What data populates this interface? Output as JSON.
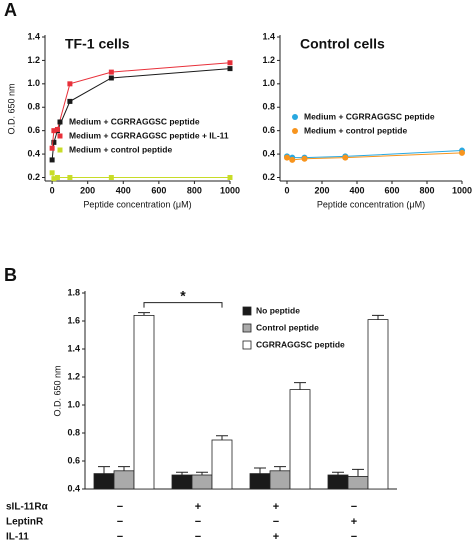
{
  "panel_labels": [
    "A",
    "B"
  ],
  "chart_data": [
    {
      "type": "line",
      "title": "TF-1 cells",
      "xlabel": "Peptide concentration (μM)",
      "ylabel": "O.D. 650 nm",
      "xlim": [
        -40,
        1000
      ],
      "xticks": [
        0,
        200,
        400,
        600,
        800,
        1000
      ],
      "ylim": [
        0.17,
        1.4
      ],
      "yticks": [
        0.2,
        0.4,
        0.6,
        0.8,
        {
          "value": 1,
          "label": "1.0"
        },
        1.2,
        1.4
      ],
      "marker": "square",
      "legend": "lower left",
      "series": [
        {
          "name": "Medium + CGRRAGGSC peptide",
          "color": "#1a1a1a",
          "x": [
            0,
            10,
            30,
            100,
            333,
            1000
          ],
          "values": [
            0.35,
            0.5,
            0.6,
            0.85,
            1.05,
            1.13
          ]
        },
        {
          "name": "Medium + CGRRAGGSC peptide + IL-11",
          "color": "#e8303a",
          "x": [
            0,
            10,
            30,
            100,
            333,
            1000
          ],
          "values": [
            0.45,
            0.6,
            0.61,
            1.0,
            1.1,
            1.18
          ]
        },
        {
          "name": "Medium + control peptide",
          "color": "#c8dc28",
          "x": [
            0,
            10,
            30,
            100,
            333,
            1000
          ],
          "values": [
            0.24,
            0.19,
            0.2,
            0.2,
            0.2,
            0.2
          ]
        }
      ]
    },
    {
      "type": "line",
      "title": "Control cells",
      "xlabel": "Peptide concentration (μM)",
      "xlim": [
        -40,
        1000
      ],
      "xticks": [
        0,
        200,
        400,
        600,
        800,
        1000
      ],
      "ylim": [
        0.17,
        1.4
      ],
      "yticks": [
        0.2,
        0.4,
        0.6,
        0.8,
        {
          "value": 1,
          "label": "1.0"
        },
        1.2,
        1.4
      ],
      "marker": "circle",
      "legend": "center left",
      "series": [
        {
          "name": "Medium + CGRRAGGSC peptide",
          "color": "#29a8e0",
          "x": [
            0,
            30,
            100,
            333,
            1000
          ],
          "values": [
            0.38,
            0.37,
            0.37,
            0.38,
            0.43
          ]
        },
        {
          "name": "Medium + control peptide",
          "color": "#f7941d",
          "x": [
            0,
            30,
            100,
            333,
            1000
          ],
          "values": [
            0.37,
            0.35,
            0.36,
            0.37,
            0.41
          ]
        }
      ]
    },
    {
      "type": "bar",
      "ylabel": "O.D. 650 nm",
      "annotation": "*",
      "ylim": [
        0.4,
        1.8
      ],
      "yticks": [
        0.4,
        0.6,
        0.8,
        {
          "value": 1,
          "label": "1.0"
        },
        1.2,
        1.4,
        1.6,
        1.8
      ],
      "categories": [
        null,
        null,
        null,
        null
      ],
      "legend": "upper right",
      "series": [
        {
          "name": "No peptide",
          "color": "#1a1a1a",
          "values": [
            0.51,
            0.5,
            0.51,
            0.5
          ],
          "errors": [
            0.05,
            0.02,
            0.04,
            0.02
          ]
        },
        {
          "name": "Control peptide",
          "color": "#aaaaaa",
          "values": [
            0.53,
            0.5,
            0.53,
            0.49
          ],
          "errors": [
            0.03,
            0.02,
            0.03,
            0.05
          ]
        },
        {
          "name": "CGRRAGGSC peptide",
          "color": "#ffffff",
          "values": [
            1.64,
            0.75,
            1.11,
            1.61
          ],
          "errors": [
            0.02,
            0.03,
            0.05,
            0.03
          ]
        }
      ]
    }
  ],
  "treatments": [
    {
      "label": "sIL-11Rα",
      "values": [
        "−",
        "+",
        "+",
        "−"
      ]
    },
    {
      "label": "LeptinR",
      "values": [
        "−",
        "−",
        "−",
        "+"
      ]
    },
    {
      "label": "IL-11",
      "values": [
        "−",
        "−",
        "+",
        "−"
      ]
    }
  ]
}
